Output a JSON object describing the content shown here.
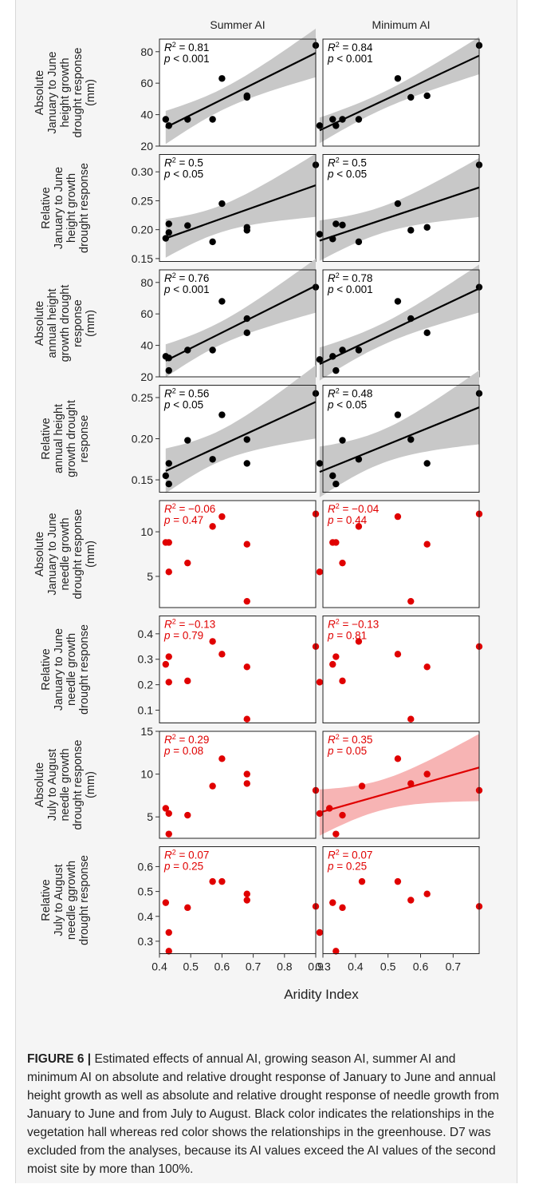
{
  "figure": {
    "label": "FIGURE 6 |",
    "caption": "Estimated effects of annual AI, growing season AI, summer AI and minimum AI on absolute and relative drought response of January to June and annual height growth as well as absolute and relative drought response of needle growth from January to June and from July to August. Black color indicates the relationships in the vegetation hall whereas red color shows the relationships in the greenhouse. D7 was excluded from the analyses, because its AI values exceed the AI values of the second moist site by more than 100%."
  },
  "colors": {
    "black": "#000000",
    "red": "#e00000",
    "ci_gray": "#c8c8c8",
    "ci_red": "#f7b4b4"
  },
  "chart_data": {
    "type": "scatter",
    "column_titles": [
      "Summer AI",
      "Minimum AI"
    ],
    "xlabel": "Aridity Index",
    "columns": [
      {
        "xlim": [
          0.4,
          0.9
        ],
        "xticks": [
          0.4,
          0.5,
          0.6,
          0.7,
          0.8,
          0.9
        ]
      },
      {
        "xlim": [
          0.3,
          0.78
        ],
        "xticks": [
          0.3,
          0.4,
          0.5,
          0.6,
          0.7
        ]
      }
    ],
    "rows": [
      {
        "ylabel": [
          "Absolute",
          "January to June",
          "height growth",
          "drought response",
          "(mm)"
        ],
        "ylim": [
          20,
          88
        ],
        "yticks": [
          20,
          40,
          60,
          80
        ],
        "ytick_labels": [
          "20",
          "40",
          "60",
          "80"
        ],
        "color": "black",
        "panels": [
          {
            "r2": "0.81",
            "p": "< 0.001",
            "fit": true,
            "points": [
              [
                0.42,
                37
              ],
              [
                0.43,
                33
              ],
              [
                0.49,
                37
              ],
              [
                0.57,
                37
              ],
              [
                0.6,
                63
              ],
              [
                0.68,
                51
              ],
              [
                0.68,
                52
              ],
              [
                0.9,
                84
              ]
            ]
          },
          {
            "r2": "0.84",
            "p": "< 0.001",
            "fit": true,
            "points": [
              [
                0.29,
                33
              ],
              [
                0.33,
                37
              ],
              [
                0.34,
                33
              ],
              [
                0.36,
                37
              ],
              [
                0.41,
                37
              ],
              [
                0.53,
                63
              ],
              [
                0.57,
                51
              ],
              [
                0.62,
                52
              ],
              [
                0.78,
                84
              ]
            ]
          }
        ]
      },
      {
        "ylabel": [
          "Relative",
          "January to June",
          "height growth",
          "drought response"
        ],
        "ylim": [
          0.145,
          0.33
        ],
        "yticks": [
          0.15,
          0.2,
          0.25,
          0.3
        ],
        "ytick_labels": [
          "0.15",
          "0.20",
          "0.25",
          "0.30"
        ],
        "color": "black",
        "panels": [
          {
            "r2": "0.5",
            "p": "< 0.05",
            "fit": true,
            "points": [
              [
                0.42,
                0.185
              ],
              [
                0.43,
                0.21
              ],
              [
                0.43,
                0.195
              ],
              [
                0.49,
                0.207
              ],
              [
                0.57,
                0.179
              ],
              [
                0.6,
                0.245
              ],
              [
                0.68,
                0.199
              ],
              [
                0.68,
                0.204
              ],
              [
                0.9,
                0.312
              ]
            ]
          },
          {
            "r2": "0.5",
            "p": "< 0.05",
            "fit": true,
            "points": [
              [
                0.29,
                0.192
              ],
              [
                0.33,
                0.184
              ],
              [
                0.34,
                0.21
              ],
              [
                0.36,
                0.208
              ],
              [
                0.41,
                0.179
              ],
              [
                0.53,
                0.245
              ],
              [
                0.57,
                0.199
              ],
              [
                0.62,
                0.204
              ],
              [
                0.78,
                0.312
              ]
            ]
          }
        ]
      },
      {
        "ylabel": [
          "Absolute",
          "annual height",
          "growth drought",
          "response",
          "(mm)"
        ],
        "ylim": [
          20,
          88
        ],
        "yticks": [
          20,
          40,
          60,
          80
        ],
        "ytick_labels": [
          "20",
          "40",
          "60",
          "80"
        ],
        "color": "black",
        "panels": [
          {
            "r2": "0.76",
            "p": "< 0.001",
            "fit": true,
            "points": [
              [
                0.42,
                33
              ],
              [
                0.43,
                32
              ],
              [
                0.43,
                24
              ],
              [
                0.49,
                37
              ],
              [
                0.57,
                37
              ],
              [
                0.6,
                68
              ],
              [
                0.68,
                57
              ],
              [
                0.68,
                48
              ],
              [
                0.9,
                77
              ]
            ]
          },
          {
            "r2": "0.78",
            "p": "< 0.001",
            "fit": true,
            "points": [
              [
                0.29,
                31
              ],
              [
                0.33,
                33
              ],
              [
                0.34,
                24
              ],
              [
                0.36,
                37
              ],
              [
                0.41,
                37
              ],
              [
                0.53,
                68
              ],
              [
                0.57,
                57
              ],
              [
                0.62,
                48
              ],
              [
                0.78,
                77
              ]
            ]
          }
        ]
      },
      {
        "ylabel": [
          "Relative",
          "annual height",
          "growth drought",
          "response"
        ],
        "ylim": [
          0.135,
          0.265
        ],
        "yticks": [
          0.15,
          0.2,
          0.25
        ],
        "ytick_labels": [
          "0.15",
          "0.20",
          "0.25"
        ],
        "color": "black",
        "panels": [
          {
            "r2": "0.56",
            "p": "< 0.05",
            "fit": true,
            "points": [
              [
                0.42,
                0.155
              ],
              [
                0.43,
                0.17
              ],
              [
                0.43,
                0.145
              ],
              [
                0.49,
                0.198
              ],
              [
                0.57,
                0.175
              ],
              [
                0.6,
                0.229
              ],
              [
                0.68,
                0.199
              ],
              [
                0.68,
                0.17
              ],
              [
                0.9,
                0.255
              ]
            ]
          },
          {
            "r2": "0.48",
            "p": "< 0.05",
            "fit": true,
            "points": [
              [
                0.29,
                0.17
              ],
              [
                0.33,
                0.155
              ],
              [
                0.34,
                0.145
              ],
              [
                0.36,
                0.198
              ],
              [
                0.41,
                0.175
              ],
              [
                0.53,
                0.229
              ],
              [
                0.57,
                0.199
              ],
              [
                0.62,
                0.17
              ],
              [
                0.78,
                0.255
              ]
            ]
          }
        ]
      },
      {
        "ylabel": [
          "Absolute",
          "January to June",
          "needle growth",
          "drought response",
          "(mm)"
        ],
        "ylim": [
          1.5,
          13.5
        ],
        "yticks": [
          5,
          10
        ],
        "ytick_labels": [
          "5",
          "10"
        ],
        "color": "red",
        "panels": [
          {
            "r2": "−0.06",
            "p": "0.47",
            "fit": false,
            "points": [
              [
                0.42,
                8.8
              ],
              [
                0.43,
                8.8
              ],
              [
                0.43,
                5.5
              ],
              [
                0.49,
                6.5
              ],
              [
                0.57,
                10.6
              ],
              [
                0.6,
                11.7
              ],
              [
                0.68,
                8.6
              ],
              [
                0.68,
                2.2
              ],
              [
                0.9,
                12
              ]
            ]
          },
          {
            "r2": "−0.04",
            "p": "0.44",
            "fit": false,
            "points": [
              [
                0.29,
                5.5
              ],
              [
                0.33,
                8.8
              ],
              [
                0.34,
                8.8
              ],
              [
                0.36,
                6.5
              ],
              [
                0.41,
                10.6
              ],
              [
                0.53,
                11.7
              ],
              [
                0.57,
                2.2
              ],
              [
                0.62,
                8.6
              ],
              [
                0.78,
                12
              ]
            ]
          }
        ]
      },
      {
        "ylabel": [
          "Relative",
          "January to June",
          "needle growth",
          "drought response"
        ],
        "ylim": [
          0.05,
          0.47
        ],
        "yticks": [
          0.1,
          0.2,
          0.3,
          0.4
        ],
        "ytick_labels": [
          "0.1",
          "0.2",
          "0.3",
          "0.4"
        ],
        "color": "red",
        "panels": [
          {
            "r2": "−0.13",
            "p": "0.79",
            "fit": false,
            "points": [
              [
                0.42,
                0.28
              ],
              [
                0.43,
                0.31
              ],
              [
                0.43,
                0.21
              ],
              [
                0.49,
                0.215
              ],
              [
                0.57,
                0.37
              ],
              [
                0.6,
                0.32
              ],
              [
                0.68,
                0.27
              ],
              [
                0.68,
                0.065
              ],
              [
                0.9,
                0.35
              ]
            ]
          },
          {
            "r2": "−0.13",
            "p": "0.81",
            "fit": false,
            "points": [
              [
                0.29,
                0.21
              ],
              [
                0.33,
                0.28
              ],
              [
                0.34,
                0.31
              ],
              [
                0.36,
                0.215
              ],
              [
                0.41,
                0.37
              ],
              [
                0.53,
                0.32
              ],
              [
                0.57,
                0.065
              ],
              [
                0.62,
                0.27
              ],
              [
                0.78,
                0.35
              ]
            ]
          }
        ]
      },
      {
        "ylabel": [
          "Absolute",
          "July to August",
          "needle growth",
          "drought response",
          "(mm)"
        ],
        "ylim": [
          2.5,
          15
        ],
        "yticks": [
          5,
          10,
          15
        ],
        "ytick_labels": [
          "5",
          "10",
          "15"
        ],
        "color": "red",
        "panels": [
          {
            "r2": "0.29",
            "p": "0.08",
            "fit": false,
            "points": [
              [
                0.42,
                6
              ],
              [
                0.43,
                5.4
              ],
              [
                0.43,
                3
              ],
              [
                0.49,
                5.2
              ],
              [
                0.57,
                8.6
              ],
              [
                0.6,
                11.8
              ],
              [
                0.68,
                8.9
              ],
              [
                0.68,
                10
              ],
              [
                0.9,
                8.1
              ]
            ]
          },
          {
            "r2": "0.35",
            "p": "0.05",
            "fit": true,
            "points": [
              [
                0.29,
                5.4
              ],
              [
                0.32,
                6
              ],
              [
                0.34,
                3
              ],
              [
                0.36,
                5.2
              ],
              [
                0.42,
                8.6
              ],
              [
                0.53,
                11.8
              ],
              [
                0.57,
                8.9
              ],
              [
                0.62,
                10
              ],
              [
                0.78,
                8.1
              ]
            ]
          }
        ]
      },
      {
        "ylabel": [
          "Relative",
          "July to August",
          "needle ggrowth",
          "drought response"
        ],
        "ylim": [
          0.25,
          0.68
        ],
        "yticks": [
          0.3,
          0.4,
          0.5,
          0.6
        ],
        "ytick_labels": [
          "0.3",
          "0.4",
          "0.5",
          "0.6"
        ],
        "color": "red",
        "panels": [
          {
            "r2": "0.07",
            "p": "0.25",
            "fit": false,
            "points": [
              [
                0.42,
                0.455
              ],
              [
                0.43,
                0.335
              ],
              [
                0.43,
                0.26
              ],
              [
                0.49,
                0.435
              ],
              [
                0.57,
                0.54
              ],
              [
                0.6,
                0.54
              ],
              [
                0.68,
                0.465
              ],
              [
                0.68,
                0.49
              ],
              [
                0.9,
                0.44
              ]
            ]
          },
          {
            "r2": "0.07",
            "p": "0.25",
            "fit": false,
            "points": [
              [
                0.29,
                0.335
              ],
              [
                0.33,
                0.455
              ],
              [
                0.34,
                0.26
              ],
              [
                0.36,
                0.435
              ],
              [
                0.42,
                0.54
              ],
              [
                0.53,
                0.54
              ],
              [
                0.57,
                0.465
              ],
              [
                0.62,
                0.49
              ],
              [
                0.78,
                0.44
              ]
            ]
          }
        ]
      }
    ]
  }
}
